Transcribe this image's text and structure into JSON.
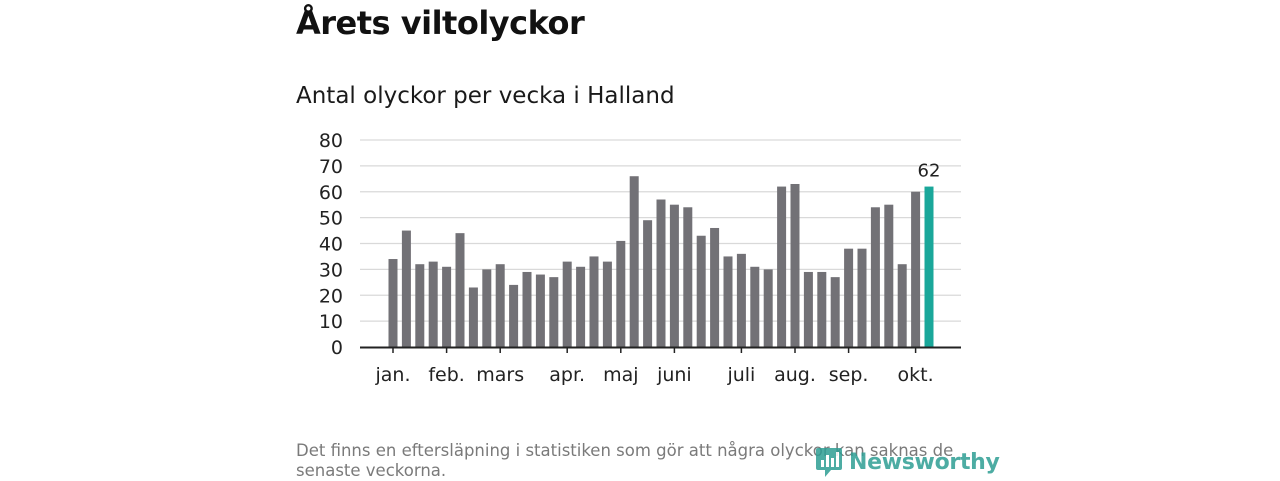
{
  "header": {
    "title": "Årets viltolyckor",
    "subtitle": "Antal olyckor per vecka i Halland"
  },
  "footnote": "Det finns en eftersläpning i statistiken som gör att några olyckor kan saknas de senaste veckorna.",
  "logo": {
    "text": "Newsworthy",
    "icon": "newsworthy-logo-icon"
  },
  "colors": {
    "bar": "#727176",
    "highlight": "#1aa79a",
    "grid": "#d9d9d9",
    "axis": "#222222"
  },
  "chart_data": {
    "type": "bar",
    "values": [
      34,
      45,
      32,
      33,
      31,
      44,
      23,
      30,
      32,
      24,
      29,
      28,
      27,
      33,
      31,
      35,
      33,
      41,
      66,
      49,
      57,
      55,
      54,
      43,
      46,
      35,
      36,
      31,
      30,
      62,
      63,
      29,
      29,
      27,
      38,
      38,
      54,
      55,
      32,
      60,
      62
    ],
    "highlight_index": 40,
    "highlight_label": "62",
    "ylim": [
      0,
      80
    ],
    "yticks": [
      0,
      10,
      20,
      30,
      40,
      50,
      60,
      70,
      80
    ],
    "month_labels": [
      {
        "label": "jan.",
        "week": 1
      },
      {
        "label": "feb.",
        "week": 5
      },
      {
        "label": "mars",
        "week": 9
      },
      {
        "label": "apr.",
        "week": 14
      },
      {
        "label": "maj",
        "week": 18
      },
      {
        "label": "juni",
        "week": 22
      },
      {
        "label": "juli",
        "week": 27
      },
      {
        "label": "aug.",
        "week": 31
      },
      {
        "label": "sep.",
        "week": 35
      },
      {
        "label": "okt.",
        "week": 40
      }
    ],
    "grid": true,
    "xlabel": "",
    "ylabel": ""
  }
}
